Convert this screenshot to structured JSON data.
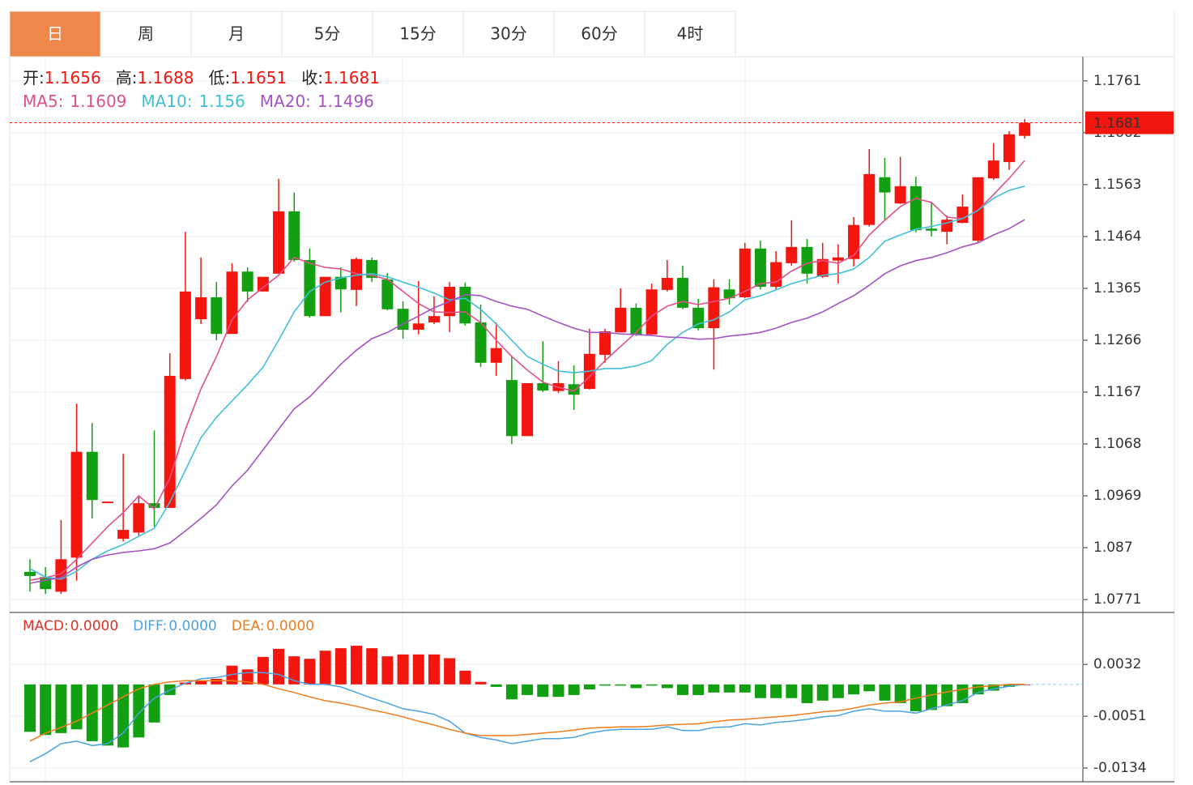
{
  "tabs": [
    "日",
    "周",
    "月",
    "5分",
    "15分",
    "30分",
    "60分",
    "4时"
  ],
  "active_tab": 0,
  "chart_data": [
    {
      "type": "candlestick",
      "info_labels": [
        "开:",
        "高:",
        "低:",
        "收:"
      ],
      "up_color": "#f2160f",
      "down_color": "#12a012",
      "open": [
        1.0824,
        1.0814,
        1.0786,
        1.0851,
        1.1053,
        1.0955,
        1.0887,
        1.0899,
        1.0955,
        1.0946,
        1.1192,
        1.1306,
        1.1348,
        1.1278,
        1.1397,
        1.1359,
        1.1393,
        1.1512,
        1.1419,
        1.1312,
        1.1387,
        1.1362,
        1.1419,
        1.1382,
        1.1326,
        1.1286,
        1.13,
        1.1312,
        1.1368,
        1.13,
        1.1223,
        1.119,
        1.1083,
        1.1184,
        1.1169,
        1.1182,
        1.1173,
        1.1238,
        1.1281,
        1.1328,
        1.1277,
        1.1362,
        1.1385,
        1.1328,
        1.1289,
        1.1363,
        1.1348,
        1.1441,
        1.1368,
        1.1413,
        1.1444,
        1.1387,
        1.1418,
        1.1421,
        1.1486,
        1.1577,
        1.1527,
        1.156,
        1.1479,
        1.1473,
        1.149,
        1.1456,
        1.1575,
        1.1606,
        1.1656
      ],
      "high": [
        1.0848,
        1.0833,
        1.0923,
        1.1145,
        1.1108,
        1.0958,
        1.1049,
        1.0969,
        1.1094,
        1.1241,
        1.1473,
        1.1424,
        1.1377,
        1.1413,
        1.1405,
        1.1387,
        1.1574,
        1.1548,
        1.1441,
        1.1387,
        1.1405,
        1.1424,
        1.1424,
        1.1394,
        1.134,
        1.1379,
        1.135,
        1.1377,
        1.1376,
        1.1334,
        1.13,
        1.1235,
        1.1184,
        1.1264,
        1.1226,
        1.1218,
        1.1288,
        1.1288,
        1.1365,
        1.1336,
        1.1374,
        1.1419,
        1.1408,
        1.1345,
        1.1382,
        1.1382,
        1.1452,
        1.1456,
        1.1436,
        1.1495,
        1.1459,
        1.1452,
        1.1449,
        1.1501,
        1.1631,
        1.1614,
        1.1616,
        1.1578,
        1.1529,
        1.1504,
        1.1544,
        1.1577,
        1.1642,
        1.1665,
        1.1688
      ],
      "low": [
        1.0786,
        1.0782,
        1.0782,
        1.0807,
        1.0926,
        1.0955,
        1.0882,
        1.0892,
        1.091,
        1.0946,
        1.1189,
        1.1297,
        1.1266,
        1.1278,
        1.1339,
        1.1359,
        1.1393,
        1.1416,
        1.1309,
        1.1312,
        1.1319,
        1.1331,
        1.1377,
        1.1323,
        1.1269,
        1.1277,
        1.1297,
        1.1281,
        1.1294,
        1.1215,
        1.1198,
        1.1068,
        1.1083,
        1.1167,
        1.1165,
        1.1133,
        1.1172,
        1.1223,
        1.1281,
        1.1274,
        1.1277,
        1.1359,
        1.1325,
        1.1285,
        1.121,
        1.1334,
        1.1346,
        1.1363,
        1.1362,
        1.1408,
        1.1374,
        1.1385,
        1.1374,
        1.1407,
        1.1483,
        1.1495,
        1.1526,
        1.1472,
        1.1464,
        1.1449,
        1.1489,
        1.1452,
        1.1572,
        1.1591,
        1.1651
      ],
      "close": [
        1.0816,
        1.0791,
        1.0848,
        1.1053,
        1.0961,
        1.0958,
        1.0904,
        1.0955,
        1.0946,
        1.1198,
        1.1359,
        1.1348,
        1.1278,
        1.1397,
        1.1359,
        1.1387,
        1.1512,
        1.1419,
        1.1312,
        1.1387,
        1.1363,
        1.1421,
        1.1385,
        1.1325,
        1.1286,
        1.1298,
        1.1312,
        1.1368,
        1.1298,
        1.1223,
        1.1251,
        1.1083,
        1.1184,
        1.117,
        1.1184,
        1.1162,
        1.124,
        1.1283,
        1.1328,
        1.1277,
        1.1363,
        1.1385,
        1.1328,
        1.1289,
        1.1367,
        1.1346,
        1.1441,
        1.1368,
        1.1415,
        1.1444,
        1.1393,
        1.1421,
        1.1424,
        1.1486,
        1.1583,
        1.1548,
        1.156,
        1.1476,
        1.1475,
        1.1496,
        1.1521,
        1.1577,
        1.1609,
        1.1659,
        1.1681
      ],
      "series": [
        {
          "name": "MA5:",
          "color": "#e0508a",
          "values": [
            1.0808,
            1.0813,
            1.082,
            1.0848,
            1.0879,
            1.091,
            1.0937,
            1.0969,
            1.0944,
            1.1003,
            1.1096,
            1.1173,
            1.1235,
            1.1305,
            1.1343,
            1.1367,
            1.139,
            1.1424,
            1.1413,
            1.1405,
            1.1402,
            1.1393,
            1.139,
            1.1382,
            1.1359,
            1.1336,
            1.132,
            1.1319,
            1.132,
            1.13,
            1.1266,
            1.1235,
            1.1209,
            1.1186,
            1.1176,
            1.1169,
            1.1196,
            1.1227,
            1.1254,
            1.1281,
            1.1312,
            1.1331,
            1.134,
            1.1334,
            1.134,
            1.1346,
            1.1359,
            1.1374,
            1.1377,
            1.1398,
            1.1413,
            1.1418,
            1.1413,
            1.1428,
            1.1467,
            1.1495,
            1.1521,
            1.1537,
            1.1529,
            1.1501,
            1.1498,
            1.1514,
            1.1544,
            1.1575,
            1.1609
          ]
        },
        {
          "name": "MA10:",
          "color": "#40c0d8",
          "values": [
            1.083,
            1.0814,
            1.081,
            1.0825,
            1.0848,
            1.0864,
            1.0876,
            1.0892,
            1.0907,
            1.0957,
            1.1018,
            1.108,
            1.1119,
            1.115,
            1.1181,
            1.1215,
            1.1266,
            1.132,
            1.1359,
            1.1377,
            1.1385,
            1.139,
            1.1393,
            1.1387,
            1.1377,
            1.1367,
            1.1356,
            1.1343,
            1.1346,
            1.1325,
            1.1297,
            1.1266,
            1.1235,
            1.122,
            1.1207,
            1.1204,
            1.1207,
            1.1212,
            1.1212,
            1.1217,
            1.1227,
            1.1258,
            1.1281,
            1.1297,
            1.1305,
            1.132,
            1.1343,
            1.1351,
            1.1362,
            1.1374,
            1.1382,
            1.139,
            1.1393,
            1.1402,
            1.1424,
            1.1455,
            1.1467,
            1.1478,
            1.1483,
            1.149,
            1.1498,
            1.1514,
            1.1537,
            1.1552,
            1.156
          ]
        },
        {
          "name": "MA20:",
          "color": "#a552c2",
          "values": [
            1.0802,
            1.0808,
            1.0813,
            1.0833,
            1.0848,
            1.0856,
            1.0861,
            1.0864,
            1.0868,
            1.0879,
            1.0902,
            1.0926,
            1.0952,
            1.0988,
            1.1018,
            1.1057,
            1.1096,
            1.1135,
            1.1158,
            1.1189,
            1.122,
            1.1247,
            1.1269,
            1.1281,
            1.1297,
            1.1312,
            1.1328,
            1.134,
            1.1353,
            1.1351,
            1.134,
            1.1331,
            1.1325,
            1.1312,
            1.13,
            1.1289,
            1.1281,
            1.1281,
            1.1278,
            1.1277,
            1.1275,
            1.1272,
            1.1271,
            1.1268,
            1.1269,
            1.1274,
            1.1277,
            1.1281,
            1.1289,
            1.13,
            1.1308,
            1.132,
            1.1336,
            1.1351,
            1.1371,
            1.1393,
            1.1408,
            1.1418,
            1.1424,
            1.1433,
            1.1444,
            1.1452,
            1.1467,
            1.1479,
            1.1496
          ]
        }
      ],
      "ylim": [
        1.0748,
        1.1804
      ],
      "yticks": [
        1.0771,
        1.087,
        1.0969,
        1.1068,
        1.1167,
        1.1266,
        1.1365,
        1.1464,
        1.1563,
        1.1662,
        1.1761
      ],
      "grid": true
    },
    {
      "type": "macd",
      "positive_color": "#f2160f",
      "negative_color": "#12a012",
      "series": [
        {
          "name": "MACD:",
          "color": "#e0302a",
          "current_label": "0.0000",
          "values": [
            -0.0076,
            -0.0081,
            -0.0078,
            -0.0072,
            -0.0091,
            -0.0098,
            -0.0101,
            -0.0085,
            -0.0061,
            -0.0017,
            0.0003,
            0.0006,
            0.0009,
            0.003,
            0.0024,
            0.0044,
            0.0057,
            0.0045,
            0.0041,
            0.0054,
            0.0058,
            0.0062,
            0.0058,
            0.0045,
            0.0048,
            0.0048,
            0.0048,
            0.0042,
            0.0022,
            0.0004,
            -0.0004,
            -0.0024,
            -0.0017,
            -0.002,
            -0.002,
            -0.0017,
            -0.0008,
            -0.0002,
            -0.0002,
            -0.0006,
            -0.0002,
            -0.0006,
            -0.0017,
            -0.0017,
            -0.0013,
            -0.0013,
            -0.0013,
            -0.0022,
            -0.0022,
            -0.0022,
            -0.003,
            -0.0026,
            -0.0022,
            -0.0016,
            -0.0011,
            -0.0026,
            -0.003,
            -0.0043,
            -0.0041,
            -0.0035,
            -0.003,
            -0.0016,
            -0.001,
            -0.0004,
            0
          ]
        },
        {
          "name": "DIFF:",
          "color": "#4aa3e0",
          "current_label": "0.0000",
          "values": [
            -0.0124,
            -0.0111,
            -0.0095,
            -0.0091,
            -0.0098,
            -0.0095,
            -0.0078,
            -0.0046,
            -0.0022,
            -0.0009,
            0.0002,
            0.0009,
            0.0011,
            0.0016,
            0.0019,
            0.0019,
            0.0016,
            0.0006,
            0,
            0,
            -0.0004,
            -0.0013,
            -0.0022,
            -0.003,
            -0.0039,
            -0.0043,
            -0.0048,
            -0.0059,
            -0.0078,
            -0.0085,
            -0.0089,
            -0.0095,
            -0.0091,
            -0.0087,
            -0.0087,
            -0.0085,
            -0.0078,
            -0.0074,
            -0.0072,
            -0.0072,
            -0.0072,
            -0.0068,
            -0.0074,
            -0.0074,
            -0.0069,
            -0.0068,
            -0.0063,
            -0.0065,
            -0.0061,
            -0.0059,
            -0.0056,
            -0.0052,
            -0.005,
            -0.0043,
            -0.0039,
            -0.0043,
            -0.0043,
            -0.0046,
            -0.0039,
            -0.0033,
            -0.0026,
            -0.0013,
            -0.0007,
            -0.0003,
            0
          ]
        },
        {
          "name": "DEA:",
          "color": "#f07c1e",
          "current_label": "0.0000",
          "values": [
            -0.0091,
            -0.0078,
            -0.0069,
            -0.0059,
            -0.0046,
            -0.0033,
            -0.002,
            -0.0007,
            0,
            0.0004,
            0.0006,
            0.0006,
            0.0006,
            0.0006,
            0.0004,
            0,
            -0.0007,
            -0.0013,
            -0.002,
            -0.0026,
            -0.003,
            -0.0035,
            -0.0041,
            -0.0046,
            -0.0052,
            -0.0059,
            -0.0065,
            -0.0072,
            -0.0078,
            -0.0082,
            -0.0082,
            -0.0082,
            -0.008,
            -0.0078,
            -0.0076,
            -0.0073,
            -0.007,
            -0.0069,
            -0.0068,
            -0.0068,
            -0.0067,
            -0.0065,
            -0.0064,
            -0.0063,
            -0.006,
            -0.0057,
            -0.0056,
            -0.0054,
            -0.0052,
            -0.005,
            -0.0047,
            -0.0044,
            -0.0042,
            -0.0038,
            -0.0033,
            -0.003,
            -0.0028,
            -0.0022,
            -0.0017,
            -0.0012,
            -0.0008,
            -0.0004,
            -0.0002,
            0,
            0
          ]
        }
      ],
      "ylim": [
        -0.0156,
        0.0114
      ],
      "yticks": [
        -0.0134,
        -0.0051,
        0.0032
      ],
      "grid": true
    }
  ]
}
